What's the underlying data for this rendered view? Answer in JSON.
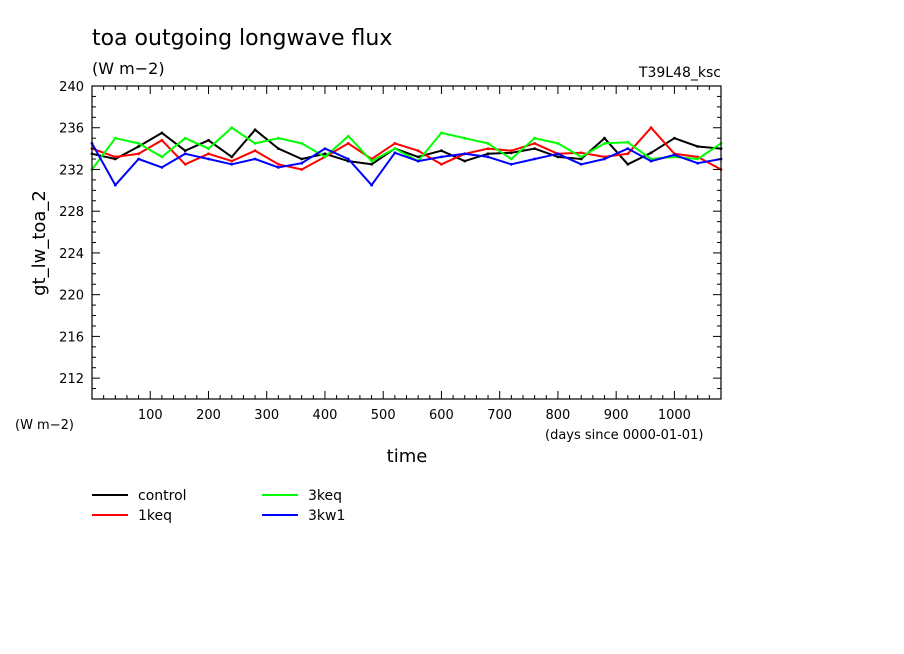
{
  "chart_data": {
    "type": "line",
    "title": "toa outgoing longwave flux",
    "subtitle": "(W m−2)",
    "tag": "T39L48_ksc",
    "ylabel": "gt_lw_toa_2",
    "yunit_label": "(W m−2)",
    "xlabel": "time",
    "xunit_label": "(days since 0000-01-01)",
    "xlim": [
      0,
      1080
    ],
    "ylim": [
      210,
      240
    ],
    "x_ticks": [
      100,
      200,
      300,
      400,
      500,
      600,
      700,
      800,
      900,
      1000
    ],
    "y_ticks": [
      212,
      216,
      220,
      224,
      228,
      232,
      236,
      240
    ],
    "x": [
      0,
      40,
      80,
      120,
      160,
      200,
      240,
      280,
      320,
      360,
      400,
      440,
      480,
      520,
      560,
      600,
      640,
      680,
      720,
      760,
      800,
      840,
      880,
      920,
      960,
      1000,
      1040,
      1080
    ],
    "series": [
      {
        "name": "control",
        "color": "#000000",
        "values": [
          233.5,
          233.0,
          234.2,
          235.5,
          233.8,
          234.8,
          233.2,
          235.8,
          234.0,
          233.0,
          233.5,
          232.8,
          232.5,
          234.0,
          233.2,
          233.8,
          232.8,
          233.5,
          233.6,
          234.0,
          233.2,
          233.0,
          235.0,
          232.5,
          233.6,
          235.0,
          234.2,
          234.0
        ]
      },
      {
        "name": "1keq",
        "color": "#ff0000",
        "values": [
          234.0,
          233.2,
          233.5,
          234.8,
          232.5,
          233.5,
          232.8,
          233.8,
          232.5,
          232.0,
          233.2,
          234.5,
          233.0,
          234.5,
          233.8,
          232.5,
          233.5,
          234.0,
          233.8,
          234.5,
          233.5,
          233.6,
          233.2,
          233.5,
          236.0,
          233.5,
          233.2,
          232.0
        ]
      },
      {
        "name": "3keq",
        "color": "#00ff00",
        "values": [
          232.0,
          235.0,
          234.5,
          233.2,
          235.0,
          234.0,
          236.0,
          234.5,
          235.0,
          234.5,
          233.2,
          235.2,
          232.8,
          234.0,
          232.8,
          235.5,
          235.0,
          234.5,
          233.0,
          235.0,
          234.5,
          233.2,
          234.5,
          234.6,
          233.0,
          233.2,
          233.0,
          234.5
        ]
      },
      {
        "name": "3kw1",
        "color": "#0000ff",
        "values": [
          234.5,
          230.5,
          233.0,
          232.2,
          233.5,
          233.0,
          232.5,
          233.0,
          232.2,
          232.6,
          234.0,
          233.0,
          230.5,
          233.6,
          232.8,
          233.2,
          233.5,
          233.2,
          232.5,
          233.0,
          233.5,
          232.5,
          233.0,
          234.0,
          232.8,
          233.4,
          232.6,
          233.0
        ]
      }
    ],
    "legend_position": "bottom-left",
    "grid": false
  }
}
